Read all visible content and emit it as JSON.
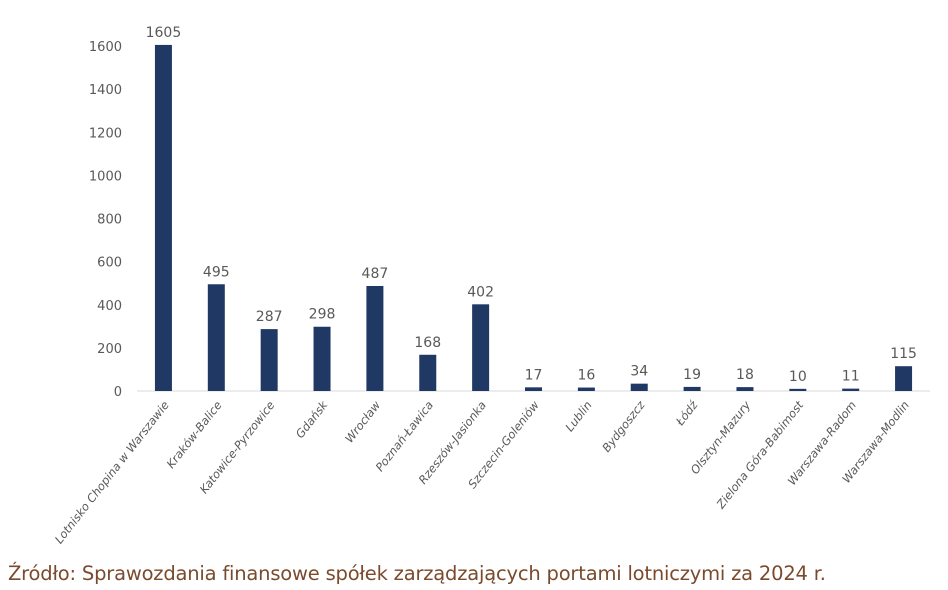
{
  "chart_data": {
    "type": "bar",
    "title": "",
    "xlabel": "",
    "ylabel": "",
    "ylim": [
      0,
      1600
    ],
    "yticks": [
      0,
      200,
      400,
      600,
      800,
      1000,
      1200,
      1400,
      1600
    ],
    "grid": false,
    "legend": "none",
    "bar_color": "#1f3864",
    "categories": [
      "Lotnisko Chopina w Warszawie",
      "Kraków-Balice",
      "Katowice-Pyrzowice",
      "Gdańsk",
      "Wrocław",
      "Poznań-Ławica",
      "Rzeszów-Jasionka",
      "Szczecin-Goleniów",
      "Lublin",
      "Bydgoszcz",
      "Łódź",
      "Olsztyn-Mazury",
      "Zielona Góra-Babimost",
      "Warszawa-Radom",
      "Warszawa-Modlin"
    ],
    "values": [
      1605,
      495,
      287,
      298,
      487,
      168,
      402,
      17,
      16,
      34,
      19,
      18,
      10,
      11,
      115
    ]
  },
  "source": "Źródło: Sprawozdania finansowe spółek zarządzających portami lotniczymi za 2024 r."
}
